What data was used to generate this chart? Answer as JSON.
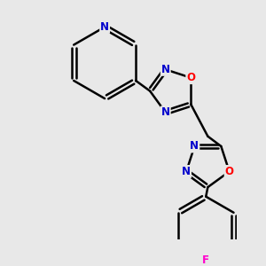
{
  "background_color": "#e8e8e8",
  "bond_color": "#000000",
  "bond_width": 1.8,
  "atom_colors": {
    "N": "#0000cc",
    "O": "#ff0000",
    "F": "#ff00cc",
    "C": "#000000"
  },
  "font_size_atom": 8.5,
  "fig_width": 3.0,
  "fig_height": 3.0,
  "dpi": 100
}
